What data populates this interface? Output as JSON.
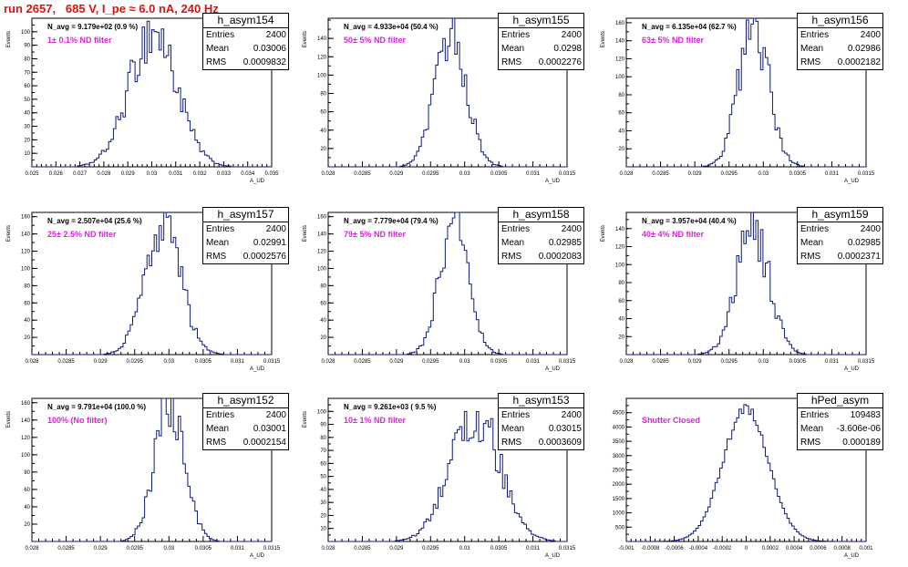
{
  "run_title": "run 2657,   685 V, I_pe ≈ 6.0 nA, 240 Hz",
  "colors": {
    "hist_line": "#0a1a80",
    "filter_label": "#e020e0",
    "run_title": "#e01010",
    "frame": "#000000"
  },
  "stat_labels": {
    "entries": "Entries",
    "mean": "Mean",
    "rms": "RMS"
  },
  "y_axis_label": "Events",
  "x_axis_label": "A_UD",
  "panels": [
    {
      "name": "h_asym154",
      "entries": "2400",
      "mean": "0.03006",
      "rms": "0.0009832",
      "navg": "N_avg = 9.179e+02 (0.9 %)",
      "filter": "1± 0.1% ND filter"
    },
    {
      "name": "h_asym155",
      "entries": "2400",
      "mean": "0.0298",
      "rms": "0.0002276",
      "navg": "N_avg = 4.933e+04 (50.4 %)",
      "filter": "50± 5% ND filter"
    },
    {
      "name": "h_asym156",
      "entries": "2400",
      "mean": "0.02986",
      "rms": "0.0002182",
      "navg": "N_avg = 6.135e+04 (62.7 %)",
      "filter": "63± 5% ND filter"
    },
    {
      "name": "h_asym157",
      "entries": "2400",
      "mean": "0.02991",
      "rms": "0.0002576",
      "navg": "N_avg = 2.507e+04 (25.6 %)",
      "filter": "25± 2.5% ND filter"
    },
    {
      "name": "h_asym158",
      "entries": "2400",
      "mean": "0.02985",
      "rms": "0.0002083",
      "navg": "N_avg = 7.779e+04 (79.4 %)",
      "filter": "79± 5% ND filter"
    },
    {
      "name": "h_asym159",
      "entries": "2400",
      "mean": "0.02985",
      "rms": "0.0002371",
      "navg": "N_avg = 3.957e+04 (40.4 %)",
      "filter": "40± 4% ND filter"
    },
    {
      "name": "h_asym152",
      "entries": "2400",
      "mean": "0.03001",
      "rms": "0.0002154",
      "navg": "N_avg = 9.791e+04 (100.0 %)",
      "filter": "100% (No filter)"
    },
    {
      "name": "h_asym153",
      "entries": "2400",
      "mean": "0.03015",
      "rms": "0.0003609",
      "navg": "N_avg = 9.261e+03 ( 9.5 %)",
      "filter": "10± 1% ND filter"
    },
    {
      "name": "hPed_asym",
      "entries": "109483",
      "mean": "-3.606e-06",
      "rms": "0.000189",
      "navg": "",
      "filter": "Shutter Closed"
    }
  ],
  "chart_data": [
    {
      "type": "histogram",
      "title": "h_asym154",
      "xlabel": "A_UD",
      "ylabel": "Events",
      "xlim": [
        0.025,
        0.035
      ],
      "ylim": [
        0,
        110
      ],
      "x_ticks": [
        "0.025",
        "0.026",
        "0.027",
        "0.028",
        "0.029",
        "0.03",
        "0.031",
        "0.032",
        "0.033",
        "0.034",
        "0.035"
      ],
      "y_ticks": [
        "10",
        "20",
        "30",
        "40",
        "50",
        "60",
        "70",
        "80",
        "90",
        "100"
      ],
      "peak_count": 100,
      "mean": 0.03006,
      "rms": 0.0009832,
      "entries": 2400
    },
    {
      "type": "histogram",
      "title": "h_asym155",
      "xlabel": "A_UD",
      "ylabel": "Events",
      "xlim": [
        0.028,
        0.0315
      ],
      "ylim": [
        0,
        162
      ],
      "x_ticks": [
        "0.028",
        "0.0285",
        "0.029",
        "0.0295",
        "0.03",
        "0.0305",
        "0.031",
        "0.0315"
      ],
      "y_ticks": [
        "20",
        "40",
        "60",
        "80",
        "100",
        "120",
        "140"
      ],
      "peak_count": 145,
      "mean": 0.0298,
      "rms": 0.0002276,
      "entries": 2400
    },
    {
      "type": "histogram",
      "title": "h_asym156",
      "xlabel": "A_UD",
      "ylabel": "Events",
      "xlim": [
        0.028,
        0.0315
      ],
      "ylim": [
        0,
        165
      ],
      "x_ticks": [
        "0.028",
        "0.0285",
        "0.029",
        "0.0295",
        "0.03",
        "0.0305",
        "0.031",
        "0.0315"
      ],
      "y_ticks": [
        "20",
        "40",
        "60",
        "80",
        "100",
        "120",
        "140",
        "160"
      ],
      "peak_count": 158,
      "mean": 0.02986,
      "rms": 0.0002182,
      "entries": 2400
    },
    {
      "type": "histogram",
      "title": "h_asym157",
      "xlabel": "A_UD",
      "ylabel": "Events",
      "xlim": [
        0.028,
        0.0315
      ],
      "ylim": [
        0,
        165
      ],
      "x_ticks": [
        "0.028",
        "0.0285",
        "0.029",
        "0.0295",
        "0.03",
        "0.0305",
        "0.031",
        "0.0315"
      ],
      "y_ticks": [
        "20",
        "40",
        "60",
        "80",
        "100",
        "120",
        "140",
        "160"
      ],
      "peak_count": 155,
      "mean": 0.02991,
      "rms": 0.0002576,
      "entries": 2400
    },
    {
      "type": "histogram",
      "title": "h_asym158",
      "xlabel": "A_UD",
      "ylabel": "Events",
      "xlim": [
        0.028,
        0.0315
      ],
      "ylim": [
        0,
        165
      ],
      "x_ticks": [
        "0.028",
        "0.0285",
        "0.029",
        "0.0295",
        "0.03",
        "0.0305",
        "0.031",
        "0.0315"
      ],
      "y_ticks": [
        "20",
        "40",
        "60",
        "80",
        "100",
        "120",
        "140",
        "160"
      ],
      "peak_count": 160,
      "mean": 0.02985,
      "rms": 0.0002083,
      "entries": 2400
    },
    {
      "type": "histogram",
      "title": "h_asym159",
      "xlabel": "A_UD",
      "ylabel": "Events",
      "xlim": [
        0.028,
        0.0315
      ],
      "ylim": [
        0,
        158
      ],
      "x_ticks": [
        "0.028",
        "0.0285",
        "0.029",
        "0.0295",
        "0.03",
        "0.0305",
        "0.031",
        "0.0315"
      ],
      "y_ticks": [
        "20",
        "40",
        "60",
        "80",
        "100",
        "120",
        "140"
      ],
      "peak_count": 140,
      "mean": 0.02985,
      "rms": 0.0002371,
      "entries": 2400
    },
    {
      "type": "histogram",
      "title": "h_asym152",
      "xlabel": "A_UD",
      "ylabel": "Events",
      "xlim": [
        0.028,
        0.0315
      ],
      "ylim": [
        0,
        165
      ],
      "x_ticks": [
        "0.028",
        "0.0285",
        "0.029",
        "0.0295",
        "0.03",
        "0.0305",
        "0.031",
        "0.0315"
      ],
      "y_ticks": [
        "20",
        "40",
        "60",
        "80",
        "100",
        "120",
        "140",
        "160"
      ],
      "peak_count": 160,
      "mean": 0.03001,
      "rms": 0.0002154,
      "entries": 2400
    },
    {
      "type": "histogram",
      "title": "h_asym153",
      "xlabel": "A_UD",
      "ylabel": "Events",
      "xlim": [
        0.028,
        0.0315
      ],
      "ylim": [
        0,
        110
      ],
      "x_ticks": [
        "0.028",
        "0.0285",
        "0.029",
        "0.0295",
        "0.03",
        "0.0305",
        "0.031",
        "0.0315"
      ],
      "y_ticks": [
        "10",
        "20",
        "30",
        "40",
        "50",
        "60",
        "70",
        "80",
        "90",
        "100"
      ],
      "peak_count": 98,
      "mean": 0.03015,
      "rms": 0.0003609,
      "entries": 2400
    },
    {
      "type": "histogram",
      "title": "hPed_asym",
      "xlabel": "A_UD",
      "ylabel": "",
      "xlim": [
        -0.001,
        0.001
      ],
      "ylim": [
        0,
        5000
      ],
      "x_ticks": [
        "-0.001",
        "-0.0008",
        "-0.0006",
        "-0.0004",
        "-0.0002",
        "0",
        "0.0002",
        "0.0004",
        "0.0006",
        "0.0008",
        "0.001"
      ],
      "y_ticks": [
        "500",
        "1000",
        "1500",
        "2000",
        "2500",
        "3000",
        "3500",
        "4000",
        "4500"
      ],
      "peak_count": 4650,
      "mean": -3.606e-06,
      "rms": 0.000189,
      "entries": 109483
    }
  ]
}
